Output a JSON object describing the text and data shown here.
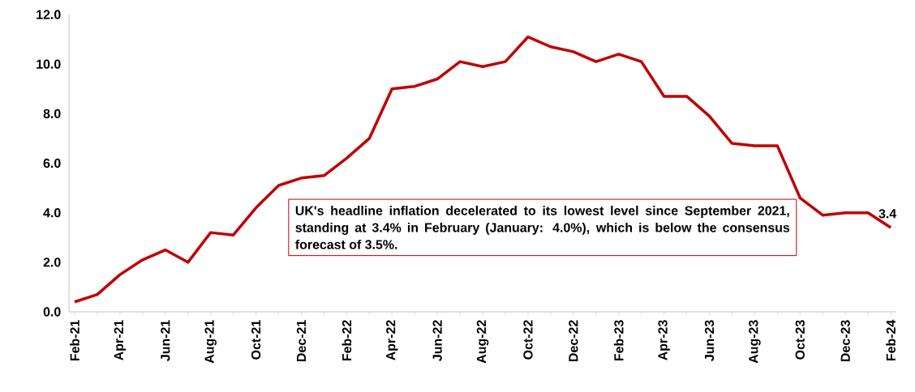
{
  "chart_data": {
    "type": "line",
    "color": "#c00000",
    "categories": [
      "Feb-21",
      null,
      "Apr-21",
      null,
      "Jun-21",
      null,
      "Aug-21",
      null,
      "Oct-21",
      null,
      "Dec-21",
      null,
      "Feb-22",
      null,
      "Apr-22",
      null,
      "Jun-22",
      null,
      "Aug-22",
      null,
      "Oct-22",
      null,
      "Dec-22",
      null,
      "Feb-23",
      null,
      "Apr-23",
      null,
      "Jun-23",
      null,
      "Aug-23",
      null,
      "Oct-23",
      null,
      "Dec-23",
      null,
      "Feb-24"
    ],
    "values": [
      0.4,
      0.7,
      1.5,
      2.1,
      2.5,
      2.0,
      3.2,
      3.1,
      4.2,
      5.1,
      5.4,
      5.5,
      6.2,
      7.0,
      9.0,
      9.1,
      9.4,
      10.1,
      9.9,
      10.1,
      11.1,
      10.7,
      10.5,
      10.1,
      10.4,
      10.1,
      8.7,
      8.7,
      7.9,
      6.8,
      6.7,
      6.7,
      4.6,
      3.9,
      4.0,
      4.0,
      3.4
    ],
    "value_labels": [
      null,
      null,
      null,
      null,
      null,
      null,
      null,
      null,
      null,
      null,
      null,
      null,
      null,
      null,
      null,
      null,
      null,
      null,
      null,
      null,
      null,
      null,
      null,
      null,
      null,
      null,
      null,
      null,
      null,
      null,
      null,
      null,
      null,
      null,
      null,
      null,
      "3.4"
    ],
    "ylim": [
      0,
      12
    ],
    "yticks": [
      {
        "value": 0,
        "label": "0.0"
      },
      {
        "value": 2,
        "label": "2.0"
      },
      {
        "value": 4,
        "label": "4.0"
      },
      {
        "value": 6,
        "label": "6.0"
      },
      {
        "value": 8,
        "label": "8.0"
      },
      {
        "value": 10,
        "label": "10.0"
      },
      {
        "value": 12,
        "label": "12.0"
      }
    ],
    "annotations": [
      "UK's headline inflation decelerated to its lowest level since September 2021, standing at 3.4% in February (January: 4.0%), which is below the consensus forecast of 3.5%."
    ]
  }
}
